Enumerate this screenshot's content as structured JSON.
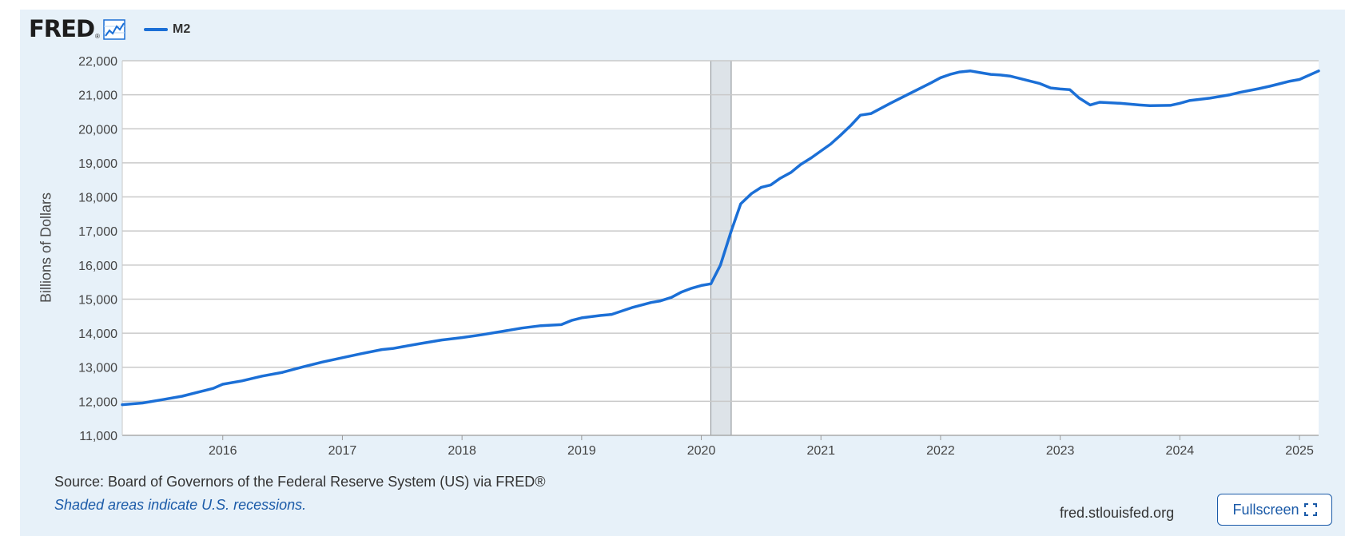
{
  "logo": {
    "text": "FRED",
    "reg": "®",
    "icon": "line-chart-icon"
  },
  "legend": {
    "label": "M2",
    "color": "#1b6fd6"
  },
  "source_text": "Source: Board of Governors of the Federal Reserve System (US) via FRED®",
  "note_text": "Shaded areas indicate U.S. recessions.",
  "site_text": "fred.stlouisfed.org",
  "fullscreen": {
    "label": "Fullscreen",
    "icon": "expand-icon"
  },
  "colors": {
    "line": "#1b6fd6",
    "recession": "#dde3e8",
    "panel": "#e7f1f9",
    "grid": "#c9c9c9"
  },
  "chart_data": {
    "type": "line",
    "title": "",
    "xlabel": "",
    "ylabel": "Billions of Dollars",
    "ylim": [
      11000,
      22000
    ],
    "yticks": [
      11000,
      12000,
      13000,
      14000,
      15000,
      16000,
      17000,
      18000,
      19000,
      20000,
      21000,
      22000
    ],
    "ytick_labels": [
      "11,000",
      "12,000",
      "13,000",
      "14,000",
      "15,000",
      "16,000",
      "17,000",
      "18,000",
      "19,000",
      "20,000",
      "21,000",
      "22,000"
    ],
    "xlim": [
      2015.16,
      2025.16
    ],
    "xticks": [
      2016,
      2017,
      2018,
      2019,
      2020,
      2021,
      2022,
      2023,
      2024,
      2025
    ],
    "xtick_labels": [
      "2016",
      "2017",
      "2018",
      "2019",
      "2020",
      "2021",
      "2022",
      "2023",
      "2024",
      "2025"
    ],
    "grid": true,
    "legend_position": "top-left",
    "recessions": [
      {
        "start": 2020.08,
        "end": 2020.25
      }
    ],
    "series": [
      {
        "name": "M2",
        "x": [
          2015.16,
          2015.33,
          2015.5,
          2015.66,
          2015.83,
          2015.92,
          2016.0,
          2016.16,
          2016.33,
          2016.5,
          2016.66,
          2016.83,
          2017.0,
          2017.16,
          2017.33,
          2017.42,
          2017.5,
          2017.66,
          2017.83,
          2018.0,
          2018.16,
          2018.33,
          2018.5,
          2018.66,
          2018.83,
          2018.92,
          2019.0,
          2019.16,
          2019.25,
          2019.42,
          2019.58,
          2019.66,
          2019.75,
          2019.83,
          2019.92,
          2020.0,
          2020.08,
          2020.16,
          2020.25,
          2020.33,
          2020.42,
          2020.5,
          2020.58,
          2020.66,
          2020.75,
          2020.83,
          2020.92,
          2021.0,
          2021.08,
          2021.16,
          2021.25,
          2021.33,
          2021.42,
          2021.58,
          2021.75,
          2021.92,
          2022.0,
          2022.08,
          2022.16,
          2022.25,
          2022.33,
          2022.42,
          2022.5,
          2022.58,
          2022.66,
          2022.75,
          2022.83,
          2022.92,
          2023.0,
          2023.08,
          2023.16,
          2023.25,
          2023.33,
          2023.5,
          2023.66,
          2023.75,
          2023.92,
          2024.0,
          2024.08,
          2024.25,
          2024.42,
          2024.5,
          2024.66,
          2024.75,
          2024.83,
          2024.92,
          2025.0,
          2025.16
        ],
        "y": [
          11900,
          11950,
          12050,
          12150,
          12300,
          12380,
          12500,
          12600,
          12740,
          12850,
          13000,
          13150,
          13280,
          13400,
          13520,
          13550,
          13600,
          13700,
          13800,
          13870,
          13950,
          14050,
          14150,
          14220,
          14250,
          14380,
          14450,
          14520,
          14550,
          14750,
          14900,
          14950,
          15050,
          15200,
          15320,
          15400,
          15450,
          16000,
          17000,
          17800,
          18100,
          18280,
          18350,
          18550,
          18720,
          18950,
          19150,
          19350,
          19550,
          19800,
          20100,
          20400,
          20450,
          20750,
          21050,
          21350,
          21500,
          21600,
          21670,
          21700,
          21650,
          21600,
          21580,
          21550,
          21480,
          21400,
          21330,
          21200,
          21170,
          21150,
          20900,
          20700,
          20780,
          20750,
          20700,
          20680,
          20690,
          20750,
          20830,
          20900,
          21000,
          21070,
          21180,
          21250,
          21320,
          21400,
          21450,
          21700
        ]
      }
    ]
  }
}
